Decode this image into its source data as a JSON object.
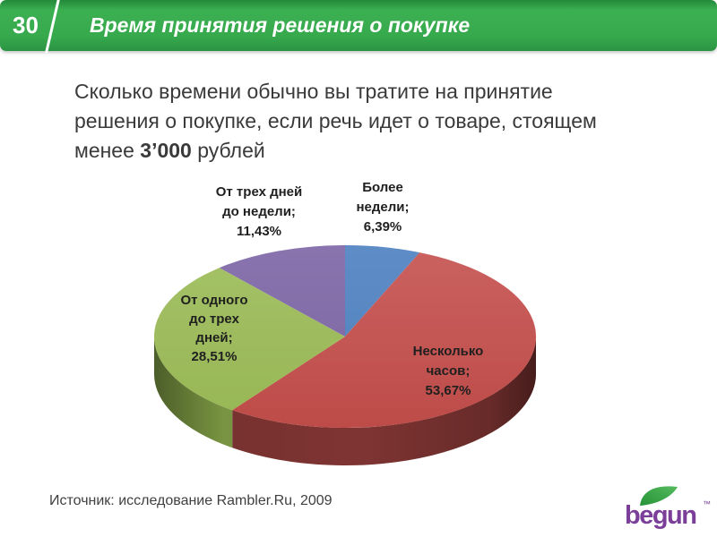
{
  "theme": {
    "header_green": "#37a94d",
    "header_green_dark": "#2a9443",
    "text_dark": "#3a3a3a"
  },
  "header": {
    "slide_number": "30",
    "title": "Время принятия решения о покупке"
  },
  "question": {
    "line1": "Сколько времени обычно вы тратите на принятие",
    "line2": "решения о покупке, если речь идет о товаре, стоящем",
    "line3_prefix": "менее ",
    "line3_bold": "3’000",
    "line3_suffix": " рублей"
  },
  "chart_data": {
    "type": "pie",
    "style": "3d",
    "title": "",
    "legend": "none",
    "start_angle_deg": -90,
    "direction": "clockwise",
    "total": 100,
    "value_format": "percent, comma decimal separator",
    "slices": [
      {
        "label": "Более недели",
        "value": 6.39,
        "display": "Более\nнедели;\n6,39%",
        "color": "#4f81bd",
        "color_light": "#5e8cc6",
        "side_color": "#35618f"
      },
      {
        "label": "Несколько часов",
        "value": 53.67,
        "display": "Несколько\nчасов;\n53,67%",
        "color": "#bd4b48",
        "color_light": "#cb6260",
        "side_color": "#7e3432"
      },
      {
        "label": "От одного до трех дней",
        "value": 28.51,
        "display": "От одного\nдо трех\nдней;\n28,51%",
        "color": "#97b654",
        "color_light": "#a5c268",
        "side_color": "#7f9c45"
      },
      {
        "label": "От трех дней до недели",
        "value": 11.43,
        "display": "От трех дней\nдо недели;\n11,43%",
        "color": "#7a65a0",
        "color_light": "#8a74af",
        "side_color": "#584876"
      }
    ]
  },
  "footer": {
    "source": "Источник: исследование Rambler.Ru, 2009"
  },
  "logo": {
    "text": "begun",
    "tm": "™",
    "color": "#7b3f9a",
    "leaf_color_dark": "#269238",
    "leaf_color_light": "#55bb5d"
  }
}
